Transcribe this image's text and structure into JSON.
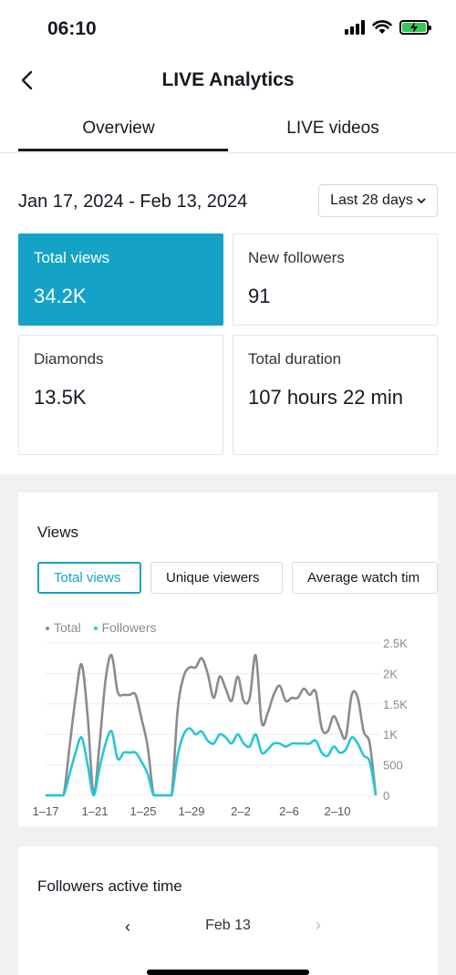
{
  "status_bar": {
    "time": "06:10"
  },
  "header": {
    "title": "LIVE Analytics"
  },
  "tabs": [
    {
      "label": "Overview",
      "active": true
    },
    {
      "label": "LIVE videos",
      "active": false
    }
  ],
  "range": {
    "dates": "Jan 17, 2024 - Feb 13, 2024",
    "period": "Last 28 days"
  },
  "metrics": [
    {
      "label": "Total views",
      "value": "34.2K",
      "selected": true
    },
    {
      "label": "New followers",
      "value": "91",
      "selected": false
    },
    {
      "label": "Diamonds",
      "value": "13.5K",
      "selected": false
    },
    {
      "label": "Total duration",
      "value": "107 hours 22 min",
      "selected": false
    }
  ],
  "views": {
    "title": "Views",
    "chips": [
      "Total views",
      "Unique viewers",
      "Average watch tim"
    ],
    "legend": {
      "total": "Total",
      "followers": "Followers"
    }
  },
  "chart_data": {
    "type": "line",
    "x_ticks": [
      "1–17",
      "1–21",
      "1–25",
      "1–29",
      "2–2",
      "2–6",
      "2–10"
    ],
    "y_ticks": [
      "2.5K",
      "2K",
      "1.5K",
      "1K",
      "500",
      "0"
    ],
    "ylim": [
      0,
      2500
    ],
    "grid": true,
    "legend_position": "top-left",
    "colors": {
      "total": "#8a8b91",
      "followers": "#27c6d6"
    },
    "x": [
      0,
      0.5,
      1,
      1.5,
      2,
      2.5,
      3,
      3.5,
      4,
      4.5,
      5,
      5.5,
      6,
      6.5,
      7,
      7.5,
      8,
      8.5,
      9,
      9.5,
      10,
      10.5,
      11,
      11.5,
      12,
      12.5,
      13,
      13.5,
      14,
      14.5,
      15,
      15.5,
      16,
      16.5,
      17,
      17.5,
      18,
      18.5,
      19,
      19.5,
      20,
      20.5,
      21,
      21.5,
      22,
      22.5,
      23,
      23.5,
      24,
      24.5,
      25,
      25.5,
      26,
      26.5,
      27,
      27.5
    ],
    "series": [
      {
        "name": "Total",
        "values": [
          0,
          0,
          0,
          0,
          800,
          1600,
          2150,
          1300,
          0,
          850,
          1900,
          2300,
          1700,
          1650,
          1650,
          1650,
          1250,
          800,
          0,
          0,
          0,
          0,
          1400,
          1950,
          2100,
          2100,
          2250,
          2000,
          1600,
          1950,
          1750,
          1550,
          1950,
          1550,
          1600,
          2300,
          1200,
          1350,
          1650,
          1800,
          1550,
          1600,
          1600,
          1750,
          1650,
          1700,
          1100,
          1050,
          1300,
          1100,
          950,
          1650,
          1600,
          1050,
          850,
          0
        ]
      },
      {
        "name": "Followers",
        "values": [
          0,
          0,
          0,
          0,
          350,
          700,
          950,
          500,
          0,
          450,
          850,
          1050,
          600,
          700,
          700,
          700,
          550,
          350,
          0,
          0,
          0,
          0,
          650,
          1000,
          1100,
          1000,
          1050,
          900,
          850,
          1000,
          950,
          850,
          1000,
          850,
          800,
          1000,
          700,
          750,
          850,
          850,
          800,
          850,
          850,
          850,
          850,
          900,
          700,
          650,
          800,
          700,
          750,
          950,
          850,
          650,
          550,
          0
        ]
      }
    ]
  },
  "followers_active": {
    "title": "Followers active time",
    "date": "Feb 13"
  }
}
